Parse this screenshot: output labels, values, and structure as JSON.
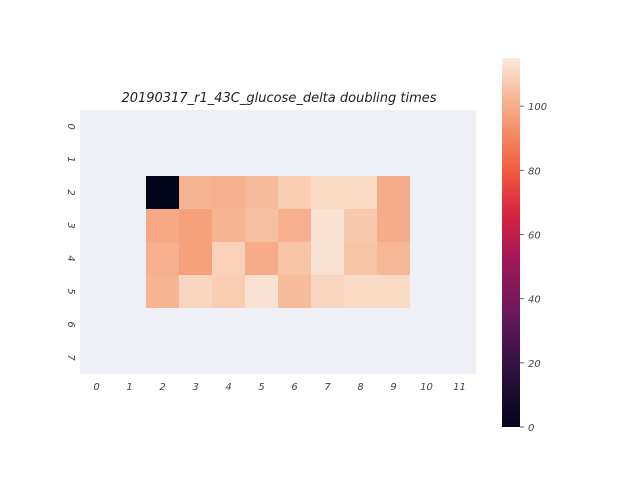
{
  "chart_data": {
    "type": "heatmap",
    "title": "20190317_r1_43C_glucose_delta doubling times",
    "xlabel": "",
    "ylabel": "",
    "x_categories": [
      "0",
      "1",
      "2",
      "3",
      "4",
      "5",
      "6",
      "7",
      "8",
      "9",
      "10",
      "11"
    ],
    "y_categories": [
      "0",
      "1",
      "2",
      "3",
      "4",
      "5",
      "6",
      "7"
    ],
    "values": [
      [
        null,
        null,
        null,
        null,
        null,
        null,
        null,
        null,
        null,
        null,
        null,
        null
      ],
      [
        null,
        null,
        null,
        null,
        null,
        null,
        null,
        null,
        null,
        null,
        null,
        null
      ],
      [
        null,
        null,
        0,
        102,
        101,
        104,
        108,
        111,
        111,
        100,
        null,
        null
      ],
      [
        null,
        null,
        99,
        97,
        102,
        105,
        101,
        113,
        107,
        100,
        null,
        null
      ],
      [
        null,
        null,
        101,
        97,
        109,
        100,
        106,
        113,
        106,
        103,
        null,
        null
      ],
      [
        null,
        null,
        102,
        110,
        108,
        113,
        104,
        110,
        111,
        111,
        null,
        null
      ],
      [
        null,
        null,
        null,
        null,
        null,
        null,
        null,
        null,
        null,
        null,
        null,
        null
      ],
      [
        null,
        null,
        null,
        null,
        null,
        null,
        null,
        null,
        null,
        null,
        null,
        null
      ]
    ],
    "colorbar": {
      "min": 0,
      "max": 115,
      "ticks": [
        0,
        20,
        40,
        60,
        80,
        100
      ],
      "colormap": "rocket"
    },
    "missing_color": "#eff0f5",
    "grid": false
  }
}
